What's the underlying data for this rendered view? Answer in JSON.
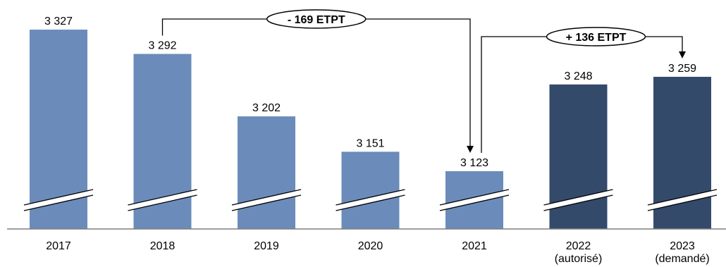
{
  "chart_data": {
    "type": "bar",
    "categories": [
      [
        "2017"
      ],
      [
        "2018"
      ],
      [
        "2019"
      ],
      [
        "2020"
      ],
      [
        "2021"
      ],
      [
        "2022",
        "(autorisé)"
      ],
      [
        "2023",
        "(demandé)"
      ]
    ],
    "values": [
      3327,
      3292,
      3202,
      3151,
      3123,
      3248,
      3259
    ],
    "data_labels": [
      "3 327",
      "3 292",
      "3 202",
      "3 151",
      "3 123",
      "3 248",
      "3 259"
    ],
    "bar_colors": [
      "#6b8cba",
      "#6b8cba",
      "#6b8cba",
      "#6b8cba",
      "#6b8cba",
      "#344a6b",
      "#344a6b"
    ],
    "axis_break": true,
    "annotations": [
      {
        "text": "- 169 ETPT",
        "from": "2018",
        "to": "2021"
      },
      {
        "text": "+ 136 ETPT",
        "from": "2021",
        "to": "2023"
      }
    ]
  }
}
